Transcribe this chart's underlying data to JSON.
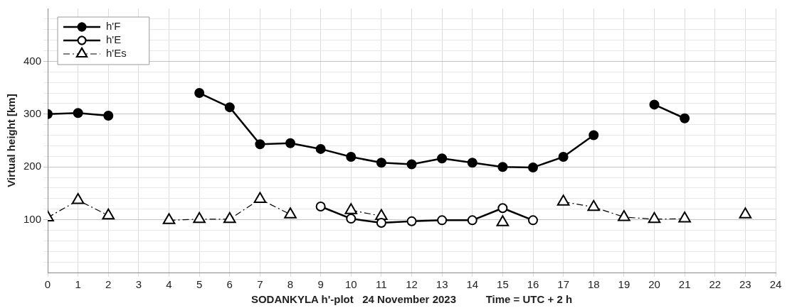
{
  "chart_data": {
    "type": "line",
    "xlabel": "SODANKYLA h'-plot   24 November 2023          Time = UTC + 2 h",
    "ylabel": "Virtual height [km]",
    "x": [
      0,
      1,
      2,
      3,
      4,
      5,
      6,
      7,
      8,
      9,
      10,
      11,
      12,
      13,
      14,
      15,
      16,
      17,
      18,
      19,
      20,
      21,
      22,
      23
    ],
    "series": [
      {
        "name": "h'F",
        "color": "#000000",
        "marker": "circle",
        "line_style": "solid",
        "values": [
          300,
          302,
          297,
          null,
          null,
          340,
          313,
          243,
          245,
          234,
          219,
          208,
          205,
          216,
          208,
          200,
          199,
          219,
          260,
          null,
          318,
          292,
          null,
          null
        ]
      },
      {
        "name": "h'E",
        "color": "#000000",
        "marker": "circle",
        "line_style": "solid",
        "values": [
          null,
          null,
          null,
          null,
          null,
          null,
          null,
          null,
          null,
          125,
          102,
          94,
          97,
          99,
          99,
          122,
          99,
          null,
          null,
          null,
          null,
          null,
          null,
          null
        ]
      },
      {
        "name": "h'Es",
        "color": "#000000",
        "marker": "triangle",
        "line_style": "dashed",
        "values": [
          104,
          137,
          108,
          null,
          99,
          101,
          101,
          139,
          110,
          null,
          118,
          107,
          null,
          null,
          null,
          95,
          null,
          134,
          124,
          105,
          101,
          102,
          null,
          110
        ]
      }
    ],
    "xlim": [
      0,
      24
    ],
    "xticks": [
      0,
      1,
      2,
      3,
      4,
      5,
      6,
      7,
      8,
      9,
      10,
      11,
      12,
      13,
      14,
      15,
      16,
      17,
      18,
      19,
      20,
      21,
      22,
      23,
      24
    ],
    "ylim": [
      0,
      500
    ],
    "yticks": [
      {
        "value": 20,
        "label": null
      },
      {
        "value": 40,
        "label": null
      },
      {
        "value": 60,
        "label": null
      },
      {
        "value": 80,
        "label": null
      },
      100,
      {
        "value": 120,
        "label": null
      },
      {
        "value": 140,
        "label": null
      },
      {
        "value": 160,
        "label": null
      },
      {
        "value": 180,
        "label": null
      },
      200,
      {
        "value": 220,
        "label": null
      },
      {
        "value": 240,
        "label": null
      },
      {
        "value": 260,
        "label": null
      },
      {
        "value": 280,
        "label": null
      },
      300,
      {
        "value": 320,
        "label": null
      },
      {
        "value": 340,
        "label": null
      },
      {
        "value": 360,
        "label": null
      },
      {
        "value": 380,
        "label": null
      },
      400,
      {
        "value": 420,
        "label": null
      },
      {
        "value": 440,
        "label": null
      },
      {
        "value": 460,
        "label": null
      },
      {
        "value": 480,
        "label": null
      }
    ],
    "grid": true,
    "legend": "top left"
  }
}
